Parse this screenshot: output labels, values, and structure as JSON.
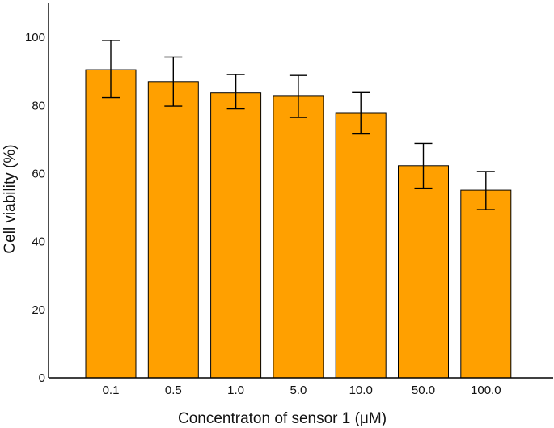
{
  "chart_data": {
    "type": "bar",
    "title": "",
    "xlabel": "Concentraton of sensor 1 (μM)",
    "ylabel": "Cell viability (%)",
    "categories": [
      "0.1",
      "0.5",
      "1.0",
      "5.0",
      "10.0",
      "50.0",
      "100.0"
    ],
    "values": [
      90.5,
      87.0,
      83.7,
      82.7,
      77.7,
      62.3,
      55.1
    ],
    "error_low": [
      82.3,
      79.8,
      79.0,
      76.5,
      71.6,
      55.7,
      49.4
    ],
    "error_high": [
      99.1,
      94.2,
      89.1,
      88.8,
      83.8,
      68.8,
      60.6
    ],
    "ylim": [
      0,
      110
    ],
    "yticks": [
      0,
      20,
      40,
      60,
      80,
      100
    ],
    "grid": false,
    "legend": "none",
    "colors": {
      "bar_fill": "#ffa000",
      "bar_stroke": "#000000",
      "axis": "#000000"
    }
  }
}
